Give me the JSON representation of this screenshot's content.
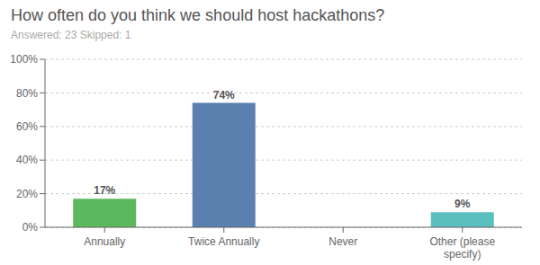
{
  "chart_data": {
    "type": "bar",
    "title": "How often do you think we should host hackathons?",
    "subtitle": "Answered: 23    Skipped: 1",
    "categories": [
      "Annually",
      "Twice Annually",
      "Never",
      "Other (please\nspecify)"
    ],
    "values": [
      17,
      74,
      0,
      9
    ],
    "value_labels": [
      "17%",
      "74%",
      null,
      "9%"
    ],
    "data_labels": true,
    "colors": [
      "#5cb85c",
      "#5b7faf",
      "#5b7faf",
      "#5bbfbf"
    ],
    "ylim": [
      0,
      100
    ],
    "yticks": [
      {
        "value": 0,
        "label": "0%"
      },
      {
        "value": 20,
        "label": "20%"
      },
      {
        "value": 40,
        "label": "40%"
      },
      {
        "value": 60,
        "label": "60%"
      },
      {
        "value": 80,
        "label": "80%"
      },
      {
        "value": 100,
        "label": "100%"
      }
    ],
    "grid": true
  }
}
